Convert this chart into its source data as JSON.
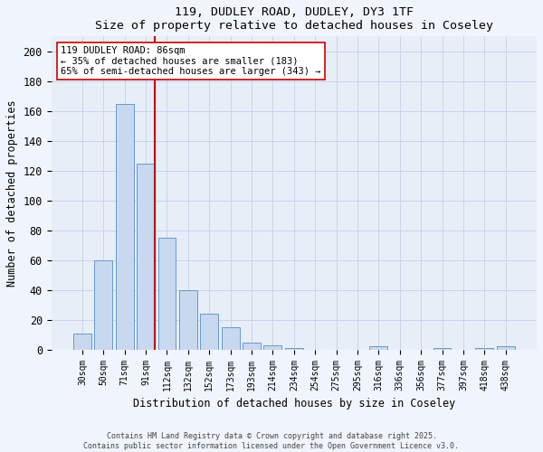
{
  "title": "119, DUDLEY ROAD, DUDLEY, DY3 1TF",
  "subtitle": "Size of property relative to detached houses in Coseley",
  "xlabel": "Distribution of detached houses by size in Coseley",
  "ylabel": "Number of detached properties",
  "bar_labels": [
    "30sqm",
    "50sqm",
    "71sqm",
    "91sqm",
    "112sqm",
    "132sqm",
    "152sqm",
    "173sqm",
    "193sqm",
    "214sqm",
    "234sqm",
    "254sqm",
    "275sqm",
    "295sqm",
    "316sqm",
    "336sqm",
    "356sqm",
    "377sqm",
    "397sqm",
    "418sqm",
    "438sqm"
  ],
  "bar_values": [
    11,
    60,
    165,
    125,
    75,
    40,
    24,
    15,
    5,
    3,
    1,
    0,
    0,
    0,
    2,
    0,
    0,
    1,
    0,
    1,
    2
  ],
  "bar_color": "#c8d8ee",
  "bar_edge_color": "#6699cc",
  "vline_color": "#cc0000",
  "annotation_text": "119 DUDLEY ROAD: 86sqm\n← 35% of detached houses are smaller (183)\n65% of semi-detached houses are larger (343) →",
  "annotation_box_color": "#ffffff",
  "annotation_box_edge": "#cc0000",
  "ylim": [
    0,
    210
  ],
  "yticks": [
    0,
    20,
    40,
    60,
    80,
    100,
    120,
    140,
    160,
    180,
    200
  ],
  "grid_color": "#c8d4e8",
  "bg_color": "#e8eef8",
  "fig_color": "#f0f4fc",
  "footer1": "Contains HM Land Registry data © Crown copyright and database right 2025.",
  "footer2": "Contains public sector information licensed under the Open Government Licence v3.0."
}
